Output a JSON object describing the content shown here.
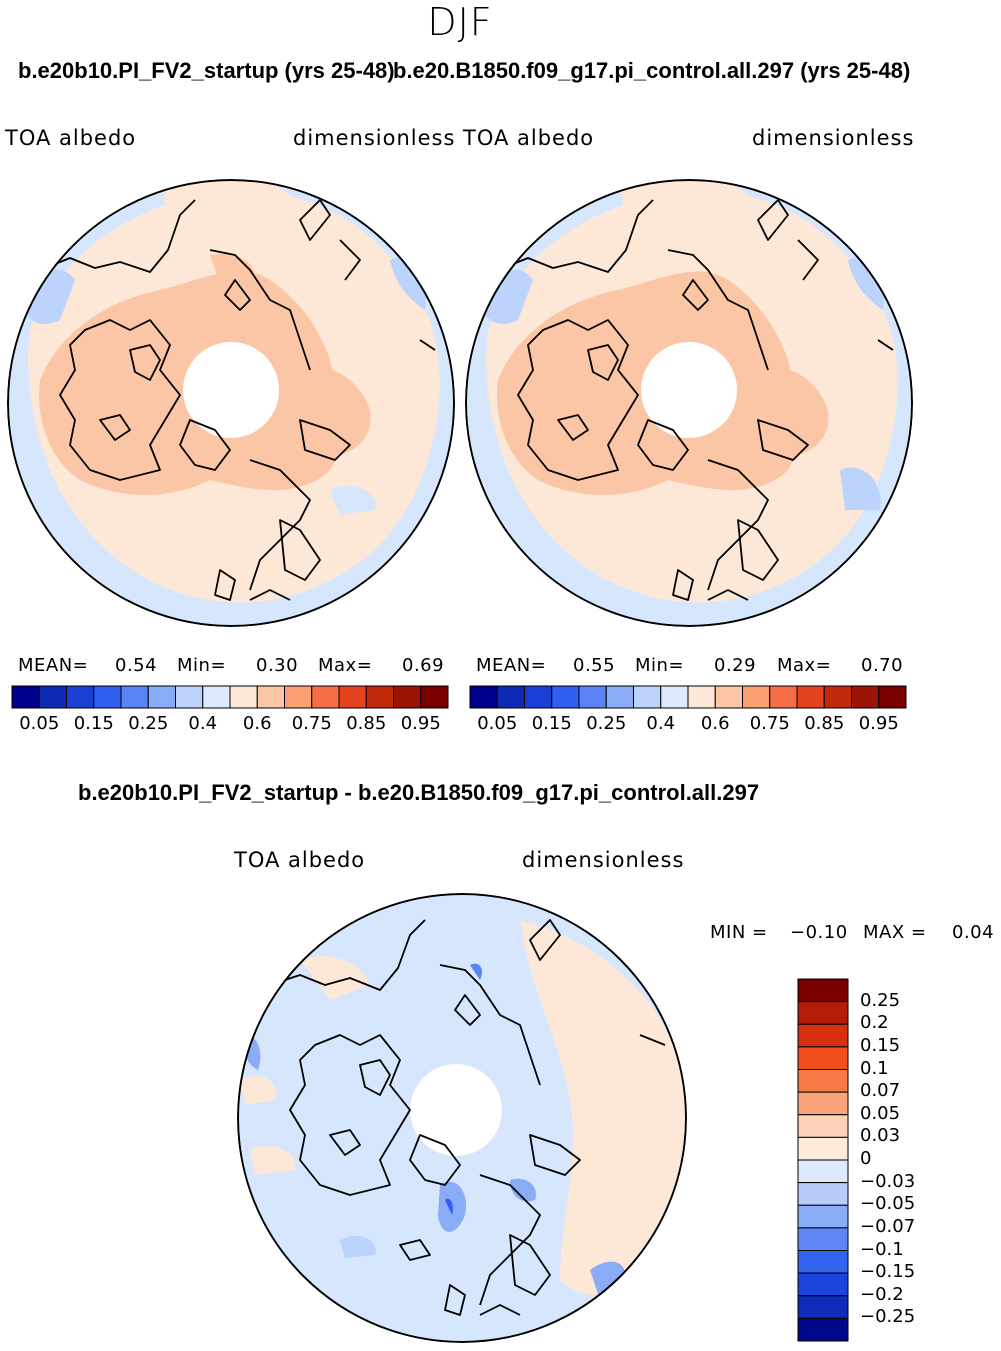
{
  "season": "DJF",
  "top_left": {
    "case": "b.e20b10.PI_FV2_startup (yrs 25-48)",
    "variable": "TOA  albedo",
    "units": "dimensionless",
    "mean_label": "MEAN=",
    "mean": "0.54",
    "min_label": "Min=",
    "min": "0.30",
    "max_label": "Max=",
    "max": "0.69"
  },
  "top_right": {
    "case": "b.e20.B1850.f09_g17.pi_control.all.297 (yrs 25-48)",
    "variable": "TOA  albedo",
    "units": "dimensionless",
    "mean_label": "MEAN=",
    "mean": "0.55",
    "min_label": "Min=",
    "min": "0.29",
    "max_label": "Max=",
    "max": "0.70"
  },
  "difference": {
    "title": "b.e20b10.PI_FV2_startup - b.e20.B1850.f09_g17.pi_control.all.297",
    "variable": "TOA  albedo",
    "units": "dimensionless",
    "min_label": "MIN =",
    "min": "−0.10",
    "max_label": "MAX =",
    "max": "0.04"
  },
  "colorbar_abs": {
    "colors": [
      "#00008c",
      "#0c2ab4",
      "#1a3fd6",
      "#2f5ef0",
      "#5a84f5",
      "#8aacf7",
      "#bcd3fb",
      "#dde9fd",
      "#fde8d7",
      "#fcc6a6",
      "#fa9f74",
      "#f56e47",
      "#e5431f",
      "#c22a0c",
      "#9c1405",
      "#7a0000"
    ],
    "ticks": [
      "0.05",
      "0.15",
      "0.25",
      "0.4",
      "0.6",
      "0.75",
      "0.85",
      "0.95"
    ]
  },
  "colorbar_diff": {
    "colors": [
      "#7a0000",
      "#b41c08",
      "#d8300f",
      "#f24e1c",
      "#f57a45",
      "#f9a47a",
      "#fcd3b8",
      "#fdecdd",
      "#dde9fd",
      "#b6cdfb",
      "#8aacf7",
      "#5f87f3",
      "#3464ee",
      "#1c44df",
      "#0e2cb8",
      "#00088c"
    ],
    "ticks": [
      "0.25",
      "0.2",
      "0.15",
      "0.1",
      "0.07",
      "0.05",
      "0.03",
      "0",
      "−0.03",
      "−0.05",
      "−0.07",
      "−0.1",
      "−0.15",
      "−0.2",
      "−0.25"
    ]
  },
  "map_colors": {
    "blue_light": "#d6e6fd",
    "blue_mid": "#bcd3fb",
    "peach": "#fde8d7",
    "salmon": "#fbc6a6",
    "orange": "#f8b08a"
  }
}
